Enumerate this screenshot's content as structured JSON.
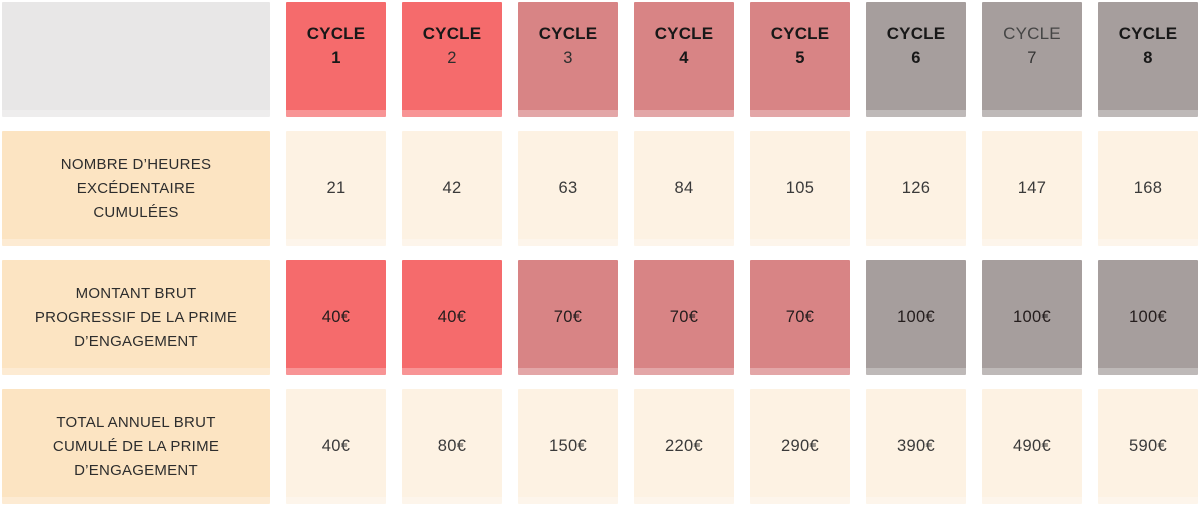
{
  "colors": {
    "red": "#f56b6c",
    "rose": "#d88485",
    "gray": "#a69e9d",
    "corner": "#e8e7e7",
    "peach": "#fce4c2",
    "cream": "#fdf2e3"
  },
  "header": {
    "columns": [
      {
        "label": "CYCLE",
        "num": "1"
      },
      {
        "label": "CYCLE",
        "num": "2"
      },
      {
        "label": "CYCLE",
        "num": "3"
      },
      {
        "label": "CYCLE",
        "num": "4"
      },
      {
        "label": "CYCLE",
        "num": "5"
      },
      {
        "label": "CYCLE",
        "num": "6"
      },
      {
        "label": "CYCLE",
        "num": "7"
      },
      {
        "label": "CYCLE",
        "num": "8"
      }
    ]
  },
  "rows": [
    {
      "label": "NOMBRE D’HEURES\nEXCÉDENTAIRE\nCUMULÉES",
      "values": [
        "21",
        "42",
        "63",
        "84",
        "105",
        "126",
        "147",
        "168"
      ]
    },
    {
      "label": "MONTANT BRUT\nPROGRESSIF DE LA PRIME\nD’ENGAGEMENT",
      "values": [
        "40€",
        "40€",
        "70€",
        "70€",
        "70€",
        "100€",
        "100€",
        "100€"
      ]
    },
    {
      "label": "TOTAL ANNUEL BRUT\nCUMULÉ DE LA PRIME\nD’ENGAGEMENT",
      "values": [
        "40€",
        "80€",
        "150€",
        "220€",
        "290€",
        "390€",
        "490€",
        "590€"
      ]
    }
  ],
  "chart_data": {
    "type": "table",
    "columns": [
      "CYCLE 1",
      "CYCLE 2",
      "CYCLE 3",
      "CYCLE 4",
      "CYCLE 5",
      "CYCLE 6",
      "CYCLE 7",
      "CYCLE 8"
    ],
    "rows": [
      {
        "label": "NOMBRE D’HEURES EXCÉDENTAIRE CUMULÉES",
        "values": [
          21,
          42,
          63,
          84,
          105,
          126,
          147,
          168
        ]
      },
      {
        "label": "MONTANT BRUT PROGRESSIF DE LA PRIME D’ENGAGEMENT",
        "values": [
          "40€",
          "40€",
          "70€",
          "70€",
          "70€",
          "100€",
          "100€",
          "100€"
        ]
      },
      {
        "label": "TOTAL ANNUEL BRUT CUMULÉ DE LA PRIME D’ENGAGEMENT",
        "values": [
          "40€",
          "80€",
          "150€",
          "220€",
          "290€",
          "390€",
          "490€",
          "590€"
        ]
      }
    ],
    "column_variants": [
      "red",
      "red",
      "rose",
      "rose",
      "rose",
      "gray",
      "gray",
      "gray"
    ]
  }
}
